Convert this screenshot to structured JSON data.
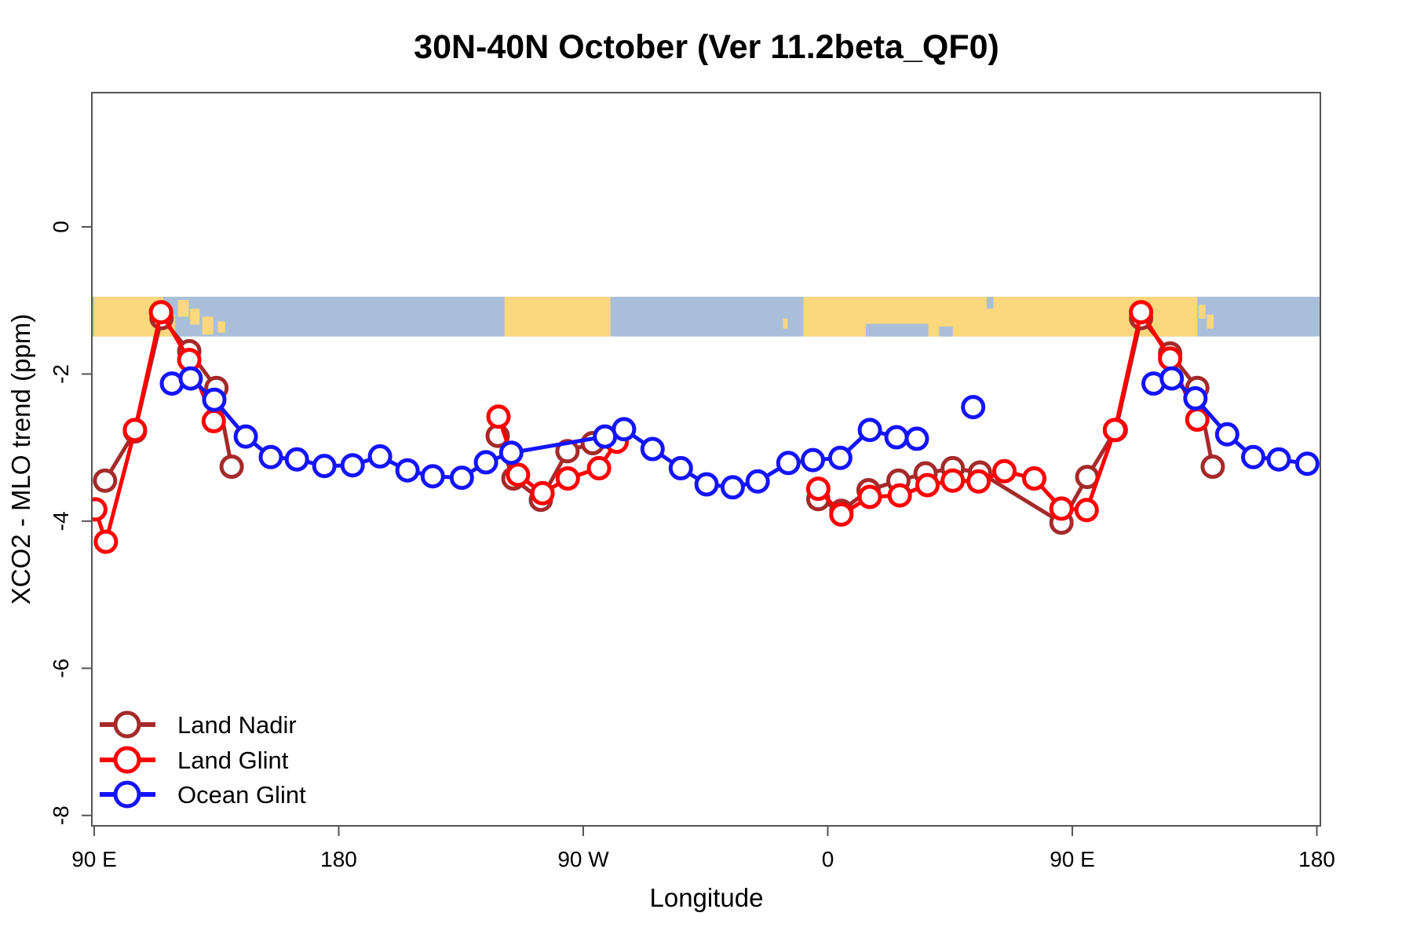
{
  "chart": {
    "title": "30N-40N October (Ver 11.2beta_QF0)",
    "xlabel": "Longitude",
    "ylabel": "XCO2 - MLO trend (ppm)"
  },
  "colors": {
    "land_nadir": "#A52A2A",
    "land_glint": "#FF0000",
    "ocean_glint": "#1414FF",
    "map_land": "#FBD77D",
    "map_ocean": "#A9BFD9",
    "box": "#555555",
    "marker_fill": "#FFFFFF"
  },
  "chart_data": {
    "type": "line",
    "title": "30N-40N October (Ver 11.2beta_QF0)",
    "xlabel": "Longitude",
    "ylabel": "XCO2 - MLO trend (ppm)",
    "x_axis_note": "longitude axis unrolled eastward: 90E -> 180 -> 90W -> 0 -> 90E -> 180 (lon values 90..540 deg east)",
    "xlim": [
      90,
      540
    ],
    "ylim": [
      -8.1,
      1.8
    ],
    "x_ticks": [
      {
        "lon": 90,
        "label": "90 E"
      },
      {
        "lon": 180,
        "label": "180"
      },
      {
        "lon": 270,
        "label": "90 W"
      },
      {
        "lon": 360,
        "label": "0"
      },
      {
        "lon": 450,
        "label": "90 E"
      },
      {
        "lon": 540,
        "label": "180"
      }
    ],
    "y_ticks": [
      {
        "v": 0,
        "label": "0"
      },
      {
        "v": -2,
        "label": "-2"
      },
      {
        "v": -4,
        "label": "-4"
      },
      {
        "v": -6,
        "label": "-6"
      },
      {
        "v": -8,
        "label": "-8"
      }
    ],
    "legend_position": "bottom-left",
    "grid": false,
    "map_band": {
      "note": "world-map strip (30N-40N latitude belt) drawn across plot",
      "value_top": -0.95,
      "value_bottom": -1.49,
      "land_patches": [
        {
          "lon": [
            90,
            119.7
          ],
          "frac": [
            0,
            1
          ]
        },
        {
          "lon": [
            120.8,
            124.8
          ],
          "frac": [
            0.08,
            0.5
          ]
        },
        {
          "lon": [
            125.3,
            128.8
          ],
          "frac": [
            0.3,
            0.7
          ]
        },
        {
          "lon": [
            129.8,
            133.8
          ],
          "frac": [
            0.5,
            0.95
          ]
        },
        {
          "lon": [
            135.5,
            138.2
          ],
          "frac": [
            0.62,
            0.9
          ]
        },
        {
          "lon": [
            241,
            280
          ],
          "frac": [
            0,
            1
          ]
        },
        {
          "lon": [
            343.5,
            345.2
          ],
          "frac": [
            0.55,
            0.8
          ]
        },
        {
          "lon": [
            351,
            496
          ],
          "frac": [
            0,
            1
          ]
        },
        {
          "lon": [
            496.5,
            499
          ],
          "frac": [
            0.2,
            0.55
          ]
        },
        {
          "lon": [
            499.5,
            502
          ],
          "frac": [
            0.45,
            0.8
          ]
        }
      ],
      "water_patches": [
        {
          "lon": [
            115.4,
            120.3
          ],
          "frac": [
            0,
            0.45
          ]
        },
        {
          "lon": [
            374,
            397
          ],
          "frac": [
            0.68,
            1
          ]
        },
        {
          "lon": [
            401,
            406
          ],
          "frac": [
            0.75,
            1
          ]
        },
        {
          "lon": [
            418.5,
            421
          ],
          "frac": [
            0,
            0.3
          ]
        }
      ]
    },
    "series": [
      {
        "name": "Land Nadir",
        "color_key": "land_nadir",
        "segments": [
          [
            [
              94,
              -3.45
            ],
            [
              105,
              -2.78
            ],
            [
              114.8,
              -1.24
            ],
            [
              125,
              -1.69
            ],
            [
              135,
              -2.19
            ],
            [
              140.6,
              -3.26
            ]
          ],
          [
            [
              238.5,
              -2.84
            ],
            [
              244.3,
              -3.42
            ],
            [
              254.4,
              -3.71
            ],
            [
              264.2,
              -3.05
            ],
            [
              273.5,
              -2.94
            ]
          ],
          [
            [
              356.5,
              -3.7
            ],
            [
              365,
              -3.86
            ],
            [
              375,
              -3.58
            ],
            [
              386,
              -3.45
            ],
            [
              396,
              -3.35
            ],
            [
              406,
              -3.28
            ],
            [
              416,
              -3.34
            ],
            [
              446,
              -4.02
            ],
            [
              455.5,
              -3.4
            ],
            [
              466,
              -2.76
            ],
            [
              475.3,
              -1.24
            ],
            [
              486,
              -1.72
            ],
            [
              496,
              -2.19
            ],
            [
              501.7,
              -3.26
            ]
          ]
        ]
      },
      {
        "name": "Land Glint",
        "color_key": "land_glint",
        "segments": [
          [
            [
              90.4,
              -3.84
            ],
            [
              94.3,
              -4.28
            ],
            [
              105,
              -2.76
            ],
            [
              114.6,
              -1.16
            ],
            [
              125,
              -1.81
            ],
            [
              134,
              -2.64
            ]
          ],
          [
            [
              238.8,
              -2.58
            ],
            [
              246,
              -3.37
            ],
            [
              255,
              -3.62
            ],
            [
              264.3,
              -3.42
            ],
            [
              275.8,
              -3.28
            ],
            [
              282.3,
              -2.92
            ]
          ],
          [
            [
              356.5,
              -3.56
            ],
            [
              365,
              -3.91
            ],
            [
              375.5,
              -3.67
            ],
            [
              386.5,
              -3.65
            ],
            [
              396.7,
              -3.51
            ],
            [
              406,
              -3.45
            ],
            [
              415.5,
              -3.46
            ],
            [
              425,
              -3.32
            ],
            [
              436,
              -3.42
            ],
            [
              446,
              -3.83
            ],
            [
              455.3,
              -3.85
            ],
            [
              465.7,
              -2.76
            ],
            [
              475.3,
              -1.16
            ],
            [
              486,
              -1.79
            ],
            [
              496,
              -2.62
            ]
          ]
        ]
      },
      {
        "name": "Ocean Glint",
        "color_key": "ocean_glint",
        "segments": [
          [
            [
              118.6,
              -2.13
            ],
            [
              125.5,
              -2.06
            ],
            [
              134.2,
              -2.35
            ],
            [
              145.8,
              -2.85
            ],
            [
              155,
              -3.13
            ],
            [
              164.6,
              -3.16
            ],
            [
              174.7,
              -3.25
            ],
            [
              185.1,
              -3.24
            ],
            [
              195.2,
              -3.12
            ],
            [
              205.3,
              -3.31
            ],
            [
              214.6,
              -3.39
            ],
            [
              225.3,
              -3.41
            ],
            [
              234.2,
              -3.2
            ],
            [
              243.5,
              -3.07
            ],
            [
              278,
              -2.85
            ],
            [
              285,
              -2.75
            ],
            [
              295.5,
              -3.02
            ],
            [
              305.9,
              -3.28
            ],
            [
              315.4,
              -3.5
            ],
            [
              325,
              -3.54
            ],
            [
              334.2,
              -3.46
            ],
            [
              345.5,
              -3.21
            ],
            [
              354.5,
              -3.17
            ],
            [
              364.6,
              -3.14
            ],
            [
              375.5,
              -2.76
            ],
            [
              385.3,
              -2.86
            ],
            [
              392.8,
              -2.88
            ]
          ],
          [
            [
              413.5,
              -2.45
            ]
          ],
          [
            [
              479.9,
              -2.13
            ],
            [
              486.6,
              -2.06
            ],
            [
              495.3,
              -2.33
            ],
            [
              507,
              -2.82
            ],
            [
              516.6,
              -3.13
            ],
            [
              526,
              -3.16
            ],
            [
              536.5,
              -3.22
            ]
          ]
        ]
      }
    ],
    "legend": [
      {
        "label": "Land Nadir",
        "color_key": "land_nadir"
      },
      {
        "label": "Land Glint",
        "color_key": "land_glint"
      },
      {
        "label": "Ocean Glint",
        "color_key": "ocean_glint"
      }
    ]
  }
}
